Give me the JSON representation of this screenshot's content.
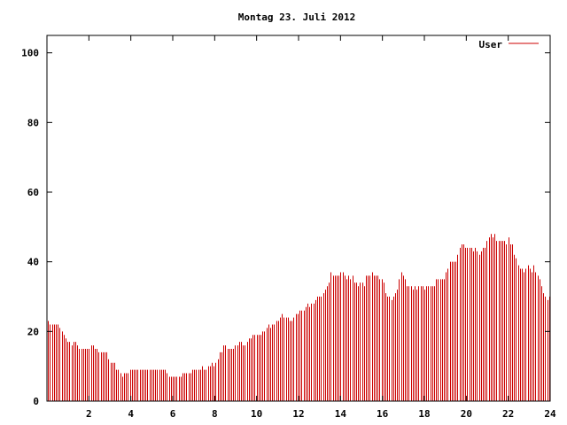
{
  "chart_data": {
    "type": "bar",
    "title": "Montag 23. Juli 2012",
    "xlabel": "",
    "ylabel": "",
    "xlim": [
      0,
      24
    ],
    "ylim": [
      0,
      105
    ],
    "xticks": [
      2,
      4,
      6,
      8,
      10,
      12,
      14,
      16,
      18,
      20,
      22,
      24
    ],
    "yticks": [
      0,
      20,
      40,
      60,
      80,
      100
    ],
    "grid": false,
    "legend_position": "top-right",
    "series": [
      {
        "name": "User",
        "color": "#cc0000",
        "values": [
          23,
          22,
          22,
          22,
          22,
          22,
          21,
          20,
          19,
          18,
          17,
          17,
          16,
          17,
          17,
          16,
          15,
          15,
          15,
          15,
          15,
          15,
          16,
          16,
          15,
          15,
          14,
          14,
          14,
          14,
          14,
          12,
          11,
          11,
          11,
          9,
          9,
          8,
          7,
          8,
          8,
          8,
          9,
          9,
          9,
          9,
          9,
          9,
          9,
          9,
          9,
          9,
          9,
          9,
          9,
          9,
          9,
          9,
          9,
          9,
          9,
          8,
          7,
          7,
          7,
          7,
          7,
          7,
          7,
          8,
          8,
          8,
          8,
          8,
          9,
          9,
          9,
          9,
          9,
          10,
          9,
          9,
          10,
          10,
          11,
          10,
          11,
          12,
          14,
          14,
          16,
          16,
          15,
          15,
          15,
          15,
          16,
          16,
          17,
          17,
          16,
          16,
          17,
          18,
          18,
          19,
          19,
          19,
          19,
          19,
          20,
          20,
          21,
          22,
          21,
          22,
          22,
          23,
          23,
          24,
          25,
          24,
          24,
          24,
          23,
          23,
          24,
          25,
          25,
          26,
          26,
          26,
          27,
          28,
          27,
          28,
          28,
          29,
          30,
          30,
          30,
          31,
          32,
          33,
          34,
          37,
          36,
          36,
          36,
          36,
          37,
          37,
          36,
          35,
          36,
          35,
          36,
          34,
          34,
          33,
          34,
          34,
          33,
          36,
          36,
          36,
          37,
          36,
          36,
          36,
          35,
          35,
          34,
          31,
          30,
          30,
          29,
          30,
          31,
          32,
          35,
          37,
          36,
          35,
          33,
          33,
          33,
          32,
          33,
          32,
          33,
          33,
          33,
          32,
          33,
          33,
          33,
          33,
          33,
          35,
          35,
          35,
          35,
          35,
          37,
          38,
          40,
          40,
          40,
          40,
          42,
          44,
          45,
          45,
          44,
          44,
          44,
          44,
          43,
          44,
          43,
          42,
          43,
          44,
          44,
          46,
          47,
          48,
          47,
          48,
          46,
          46,
          46,
          46,
          46,
          45,
          47,
          45,
          45,
          42,
          41,
          39,
          38,
          38,
          37,
          38,
          39,
          38,
          37,
          39,
          37,
          36,
          35,
          33,
          31,
          30,
          29,
          30
        ]
      }
    ]
  }
}
